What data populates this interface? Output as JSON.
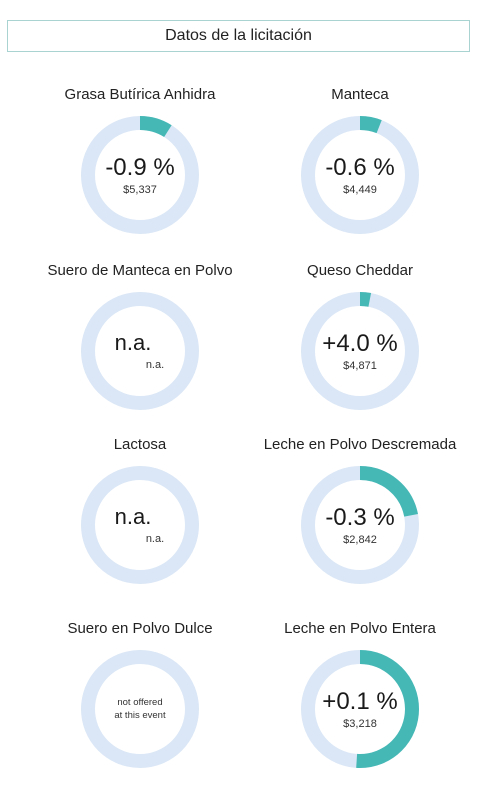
{
  "header": {
    "title": "Datos de la licitación"
  },
  "colors": {
    "track": "#dbe7f6",
    "fill": "#45b8b5"
  },
  "chart_data": [
    {
      "type": "donut",
      "title": "Grasa Butírica Anhidra",
      "change": "-0.9 %",
      "price": "$5,337",
      "fill_fraction": 0.09
    },
    {
      "type": "donut",
      "title": "Manteca",
      "change": "-0.6 %",
      "price": "$4,449",
      "fill_fraction": 0.06
    },
    {
      "type": "donut",
      "title": "Suero de Manteca en Polvo",
      "change": "n.a.",
      "price": "n.a.",
      "fill_fraction": 0
    },
    {
      "type": "donut",
      "title": "Queso Cheddar",
      "change": "+4.0 %",
      "price": "$4,871",
      "fill_fraction": 0.03
    },
    {
      "type": "donut",
      "title": "Lactosa",
      "change": "n.a.",
      "price": "n.a.",
      "fill_fraction": 0
    },
    {
      "type": "donut",
      "title": "Leche en Polvo Descremada",
      "change": "-0.3 %",
      "price": "$2,842",
      "fill_fraction": 0.22
    },
    {
      "type": "donut",
      "title": "Suero en Polvo Dulce",
      "status_line1": "not offered",
      "status_line2": "at this event",
      "fill_fraction": 0
    },
    {
      "type": "donut",
      "title": "Leche en Polvo Entera",
      "change": "+0.1 %",
      "price": "$3,218",
      "fill_fraction": 0.51
    }
  ]
}
